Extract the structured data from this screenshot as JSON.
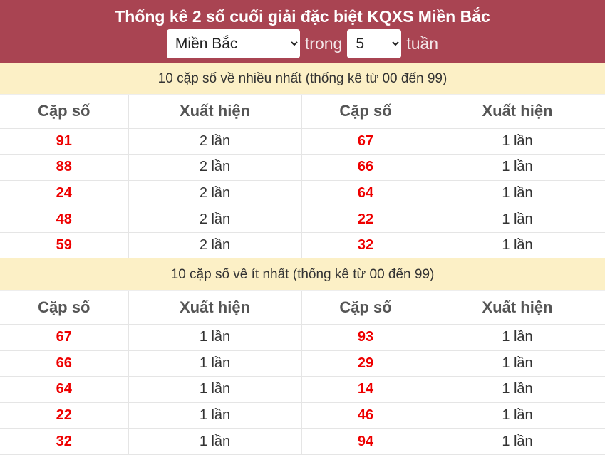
{
  "header": {
    "title": "Thống kê 2 số cuối giải đặc biệt KQXS Miền Bắc",
    "region": "Miền Bắc",
    "in_label": "trong",
    "weeks": "5",
    "unit_label": "tuần"
  },
  "colors": {
    "header_bg": "#a94452",
    "band_bg": "#fcf0c6",
    "number": "#e00000"
  },
  "columns": {
    "pair": "Cặp số",
    "count": "Xuất hiện"
  },
  "most": {
    "title": "10 cặp số về nhiều nhất (thống kê từ 00 đến 99)",
    "rows": [
      [
        "91",
        "2 lần",
        "67",
        "1 lần"
      ],
      [
        "88",
        "2 lần",
        "66",
        "1 lần"
      ],
      [
        "24",
        "2 lần",
        "64",
        "1 lần"
      ],
      [
        "48",
        "2 lần",
        "22",
        "1 lần"
      ],
      [
        "59",
        "2 lần",
        "32",
        "1 lần"
      ]
    ]
  },
  "least": {
    "title": "10 cặp số về ít nhất (thống kê từ 00 đến 99)",
    "rows": [
      [
        "67",
        "1 lần",
        "93",
        "1 lần"
      ],
      [
        "66",
        "1 lần",
        "29",
        "1 lần"
      ],
      [
        "64",
        "1 lần",
        "14",
        "1 lần"
      ],
      [
        "22",
        "1 lần",
        "46",
        "1 lần"
      ],
      [
        "32",
        "1 lần",
        "94",
        "1 lần"
      ]
    ]
  }
}
